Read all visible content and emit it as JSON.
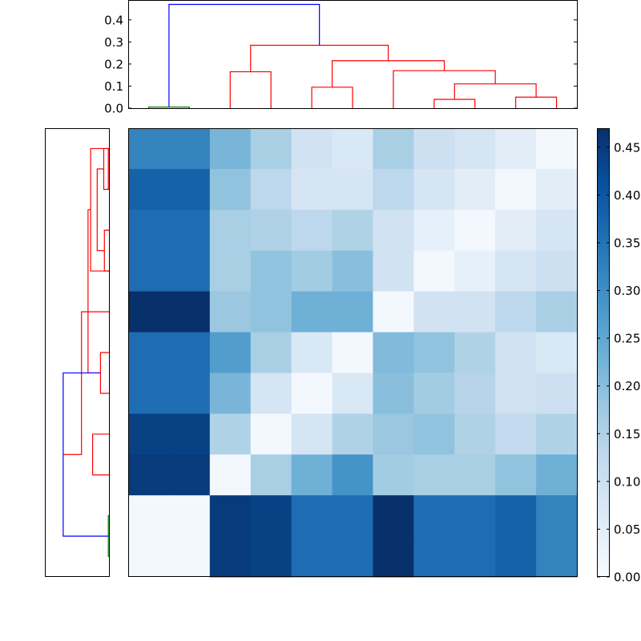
{
  "chart_data": [
    {
      "type": "heatmap",
      "rows": 11,
      "cols": 11,
      "values": [
        [
          0.32,
          0.32,
          0.22,
          0.16,
          0.09,
          0.07,
          0.16,
          0.1,
          0.08,
          0.05,
          0.01
        ],
        [
          0.38,
          0.38,
          0.19,
          0.13,
          0.08,
          0.08,
          0.13,
          0.08,
          0.05,
          0.01,
          0.05
        ],
        [
          0.36,
          0.36,
          0.16,
          0.15,
          0.13,
          0.15,
          0.09,
          0.04,
          0.01,
          0.05,
          0.08
        ],
        [
          0.36,
          0.36,
          0.16,
          0.19,
          0.17,
          0.2,
          0.09,
          0.01,
          0.04,
          0.08,
          0.1
        ],
        [
          0.47,
          0.47,
          0.18,
          0.19,
          0.23,
          0.23,
          0.01,
          0.09,
          0.09,
          0.13,
          0.16
        ],
        [
          0.36,
          0.36,
          0.27,
          0.16,
          0.07,
          0.01,
          0.21,
          0.19,
          0.15,
          0.09,
          0.07
        ],
        [
          0.36,
          0.36,
          0.22,
          0.08,
          0.01,
          0.07,
          0.2,
          0.17,
          0.14,
          0.09,
          0.1
        ],
        [
          0.44,
          0.44,
          0.15,
          0.01,
          0.08,
          0.15,
          0.18,
          0.19,
          0.15,
          0.12,
          0.15
        ],
        [
          0.45,
          0.45,
          0.01,
          0.16,
          0.23,
          0.29,
          0.17,
          0.16,
          0.16,
          0.19,
          0.23
        ],
        [
          0.01,
          0.01,
          0.45,
          0.44,
          0.36,
          0.36,
          0.47,
          0.36,
          0.36,
          0.38,
          0.32
        ],
        [
          0.01,
          0.01,
          0.45,
          0.44,
          0.36,
          0.36,
          0.47,
          0.36,
          0.36,
          0.38,
          0.32
        ]
      ],
      "colormap": "Blues",
      "vmin": 0,
      "vmax": 0.47,
      "colorbar_ticks": [
        "0.00",
        "0.05",
        "0.10",
        "0.15",
        "0.20",
        "0.25",
        "0.30",
        "0.35",
        "0.40",
        "0.45"
      ]
    },
    {
      "type": "dendrogram",
      "orientation": "top",
      "ylim": [
        0,
        0.49
      ],
      "yticks": [
        "0.0",
        "0.1",
        "0.2",
        "0.3",
        "0.4"
      ],
      "colors": {
        "cluster_a": "#008000",
        "cluster_b": "#ff0000",
        "root": "#0000ff"
      },
      "links": [
        {
          "left": 0.5,
          "right": 1.5,
          "height": 0.005,
          "color": "cluster_a"
        },
        {
          "left": 2.5,
          "right": 3.5,
          "height": 0.165,
          "color": "cluster_b"
        },
        {
          "left": 4.5,
          "right": 5.5,
          "height": 0.095,
          "color": "cluster_b"
        },
        {
          "left": 7.5,
          "right": 8.5,
          "height": 0.04,
          "color": "cluster_b"
        },
        {
          "left": 9.5,
          "right": 10.5,
          "height": 0.05,
          "color": "cluster_b"
        },
        {
          "left": 8.0,
          "right": 10.0,
          "height": 0.11,
          "color": "cluster_b"
        },
        {
          "left": 6.5,
          "right": 9.0,
          "height": 0.17,
          "color": "cluster_b"
        },
        {
          "left": 5.0,
          "right": 7.75,
          "height": 0.215,
          "color": "cluster_b"
        },
        {
          "left": 3.0,
          "right": 6.375,
          "height": 0.285,
          "color": "cluster_b"
        },
        {
          "left": 1.0,
          "right": 4.6875,
          "height": 0.47,
          "color": "root"
        }
      ]
    },
    {
      "type": "dendrogram",
      "orientation": "left",
      "colors": {
        "cluster_a": "#008000",
        "cluster_b": "#ff0000",
        "root": "#0000ff"
      },
      "links": [
        {
          "left": 0.5,
          "right": 1.5,
          "height": 0.005,
          "color": "cluster_b"
        },
        {
          "left": 0.5,
          "right": 1.5,
          "height": 0.04,
          "color": "cluster_b"
        },
        {
          "left": 2.5,
          "right": 3.5,
          "height": 0.035,
          "color": "cluster_b"
        },
        {
          "left": 1.0,
          "right": 3.0,
          "height": 0.09,
          "color": "cluster_b"
        },
        {
          "left": 0.5,
          "right": 3.5,
          "height": 0.14,
          "color": "cluster_b"
        },
        {
          "left": 5.5,
          "right": 6.5,
          "height": 0.065,
          "color": "cluster_b"
        },
        {
          "left": 2.0,
          "right": 6.0,
          "height": 0.16,
          "color": "cluster_b"
        },
        {
          "left": 7.5,
          "right": 8.5,
          "height": 0.125,
          "color": "cluster_b"
        },
        {
          "left": 4.5,
          "right": 8.0,
          "height": 0.21,
          "color": "cluster_b"
        },
        {
          "left": 9.5,
          "right": 10.5,
          "height": 0.005,
          "color": "cluster_a"
        },
        {
          "left": 6.0,
          "right": 10.0,
          "height": 0.35,
          "color": "root"
        }
      ]
    }
  ]
}
